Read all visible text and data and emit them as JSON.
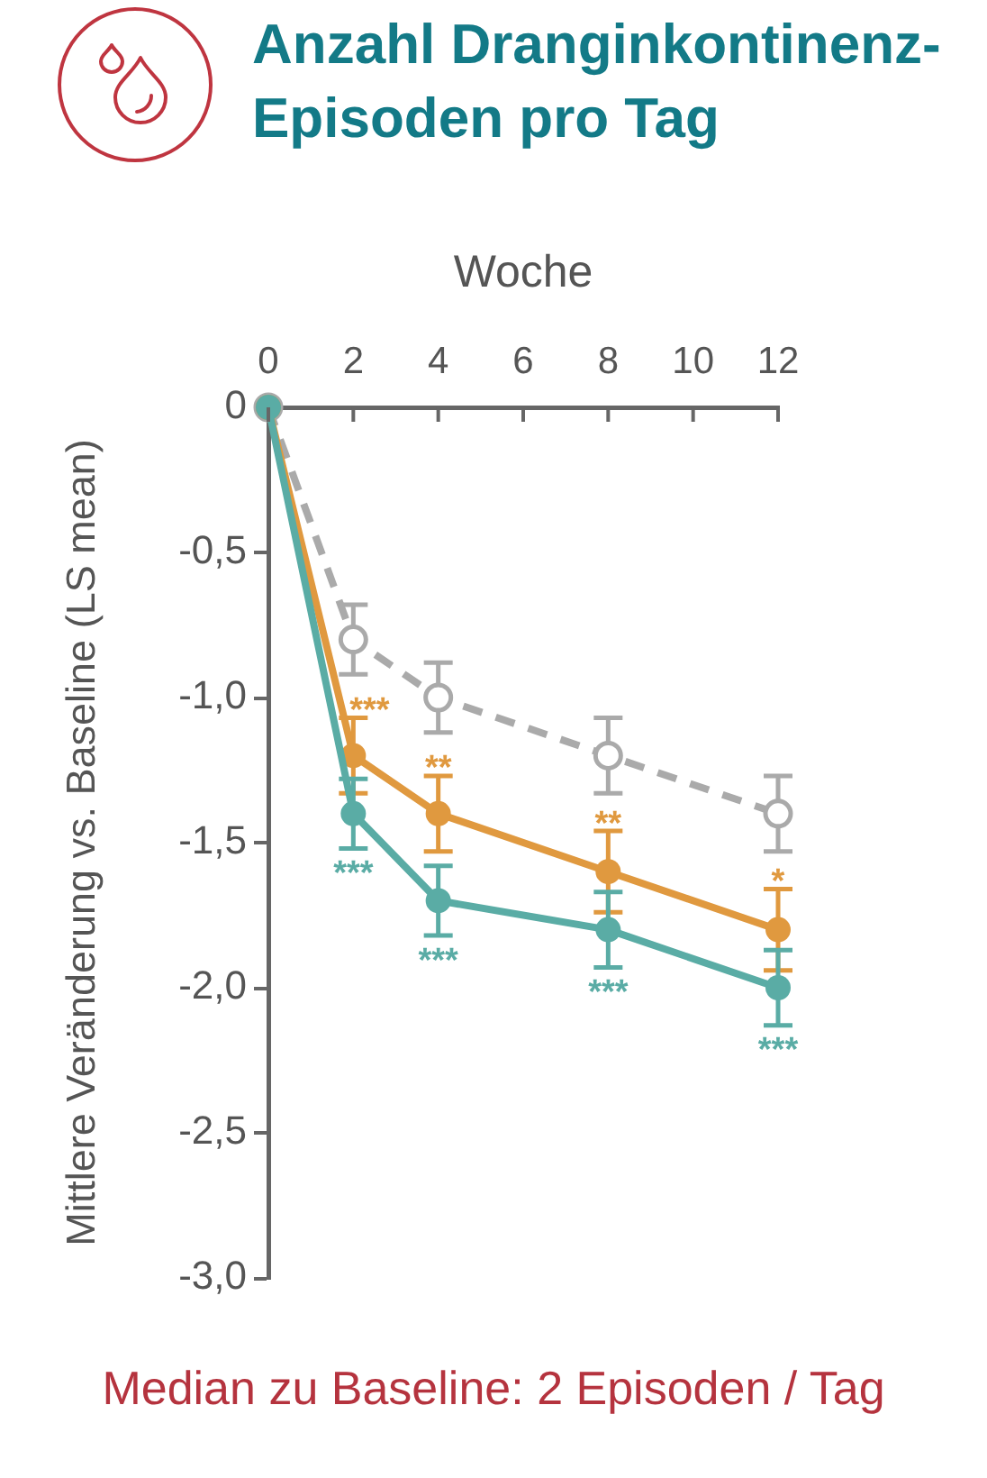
{
  "chart_data": {
    "type": "line",
    "title": "Anzahl Dranginkontinenz-Episoden pro Tag",
    "xlabel": "Woche",
    "ylabel": "Mittlere Veränderung vs. Baseline (LS mean)",
    "x": [
      0,
      2,
      4,
      8,
      12
    ],
    "xlim": [
      0,
      12
    ],
    "xticks": [
      0,
      2,
      4,
      6,
      8,
      10,
      12
    ],
    "ylim": [
      -3,
      0
    ],
    "yticks": [
      0,
      {
        "value": -0.5,
        "label": "-0,5"
      },
      {
        "value": -1,
        "label": "-1,0"
      },
      {
        "value": -1.5,
        "label": "-1,5"
      },
      {
        "value": -2,
        "label": "-2,0"
      },
      {
        "value": -2.5,
        "label": "-2,5"
      },
      {
        "value": -3,
        "label": "-3,0"
      }
    ],
    "marker": "circle",
    "series": [
      {
        "color": "#aaaaaa",
        "line_style": "dashed",
        "values": [
          0,
          -0.8,
          -1.0,
          -1.2,
          -1.4
        ],
        "errors": [
          null,
          0.12,
          0.12,
          0.13,
          0.13
        ]
      },
      {
        "color": "#e0993f",
        "values": [
          0,
          -1.2,
          -1.4,
          -1.6,
          -1.8
        ],
        "errors": [
          null,
          0.13,
          0.13,
          0.14,
          0.14
        ]
      },
      {
        "color": "#5aaca5",
        "values": [
          0,
          -1.4,
          -1.7,
          -1.8,
          -2.0
        ],
        "errors": [
          null,
          0.12,
          0.12,
          0.13,
          0.13
        ]
      }
    ],
    "annotations": [
      {
        "text": "***",
        "x": 2,
        "y": -1.2
      },
      {
        "text": "**",
        "x": 4,
        "y": -1.4
      },
      {
        "text": "**",
        "x": 8,
        "y": -1.6
      },
      {
        "text": "*",
        "x": 12,
        "y": -1.8
      },
      {
        "text": "***",
        "x": 2,
        "y": -1.4
      },
      {
        "text": "***",
        "x": 4,
        "y": -1.7
      },
      {
        "text": "***",
        "x": 8,
        "y": -1.8
      },
      {
        "text": "***",
        "x": 12,
        "y": -2.0
      },
      "Median zu Baseline: 2 Episoden / Tag"
    ]
  }
}
